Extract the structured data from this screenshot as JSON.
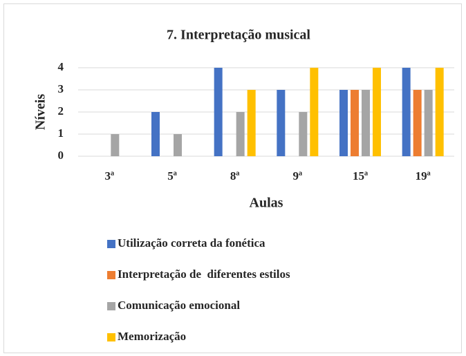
{
  "chart_data": {
    "type": "bar",
    "title": "7. Interpretação musical",
    "x_label": "Aulas",
    "y_label": "Níveis",
    "categories": [
      "3ª",
      "5ª",
      "8ª",
      "9ª",
      "15ª",
      "19ª"
    ],
    "series": [
      {
        "name": "Utilização correta da fonética",
        "color": "#4472c4",
        "values": [
          0,
          2,
          4,
          3,
          3,
          4
        ]
      },
      {
        "name": "Interpretação de  diferentes estilos",
        "color": "#ed7d31",
        "values": [
          0,
          0,
          0,
          0,
          3,
          3
        ]
      },
      {
        "name": "Comunicação emocional",
        "color": "#a5a5a5",
        "values": [
          1,
          1,
          2,
          2,
          3,
          3
        ]
      },
      {
        "name": "Memorização",
        "color": "#ffc000",
        "values": [
          0,
          0,
          3,
          4,
          4,
          4
        ]
      }
    ],
    "ylim": [
      0,
      4
    ],
    "yticks": [
      0,
      1,
      2,
      3,
      4
    ],
    "grid": true,
    "legend": "bottom"
  }
}
